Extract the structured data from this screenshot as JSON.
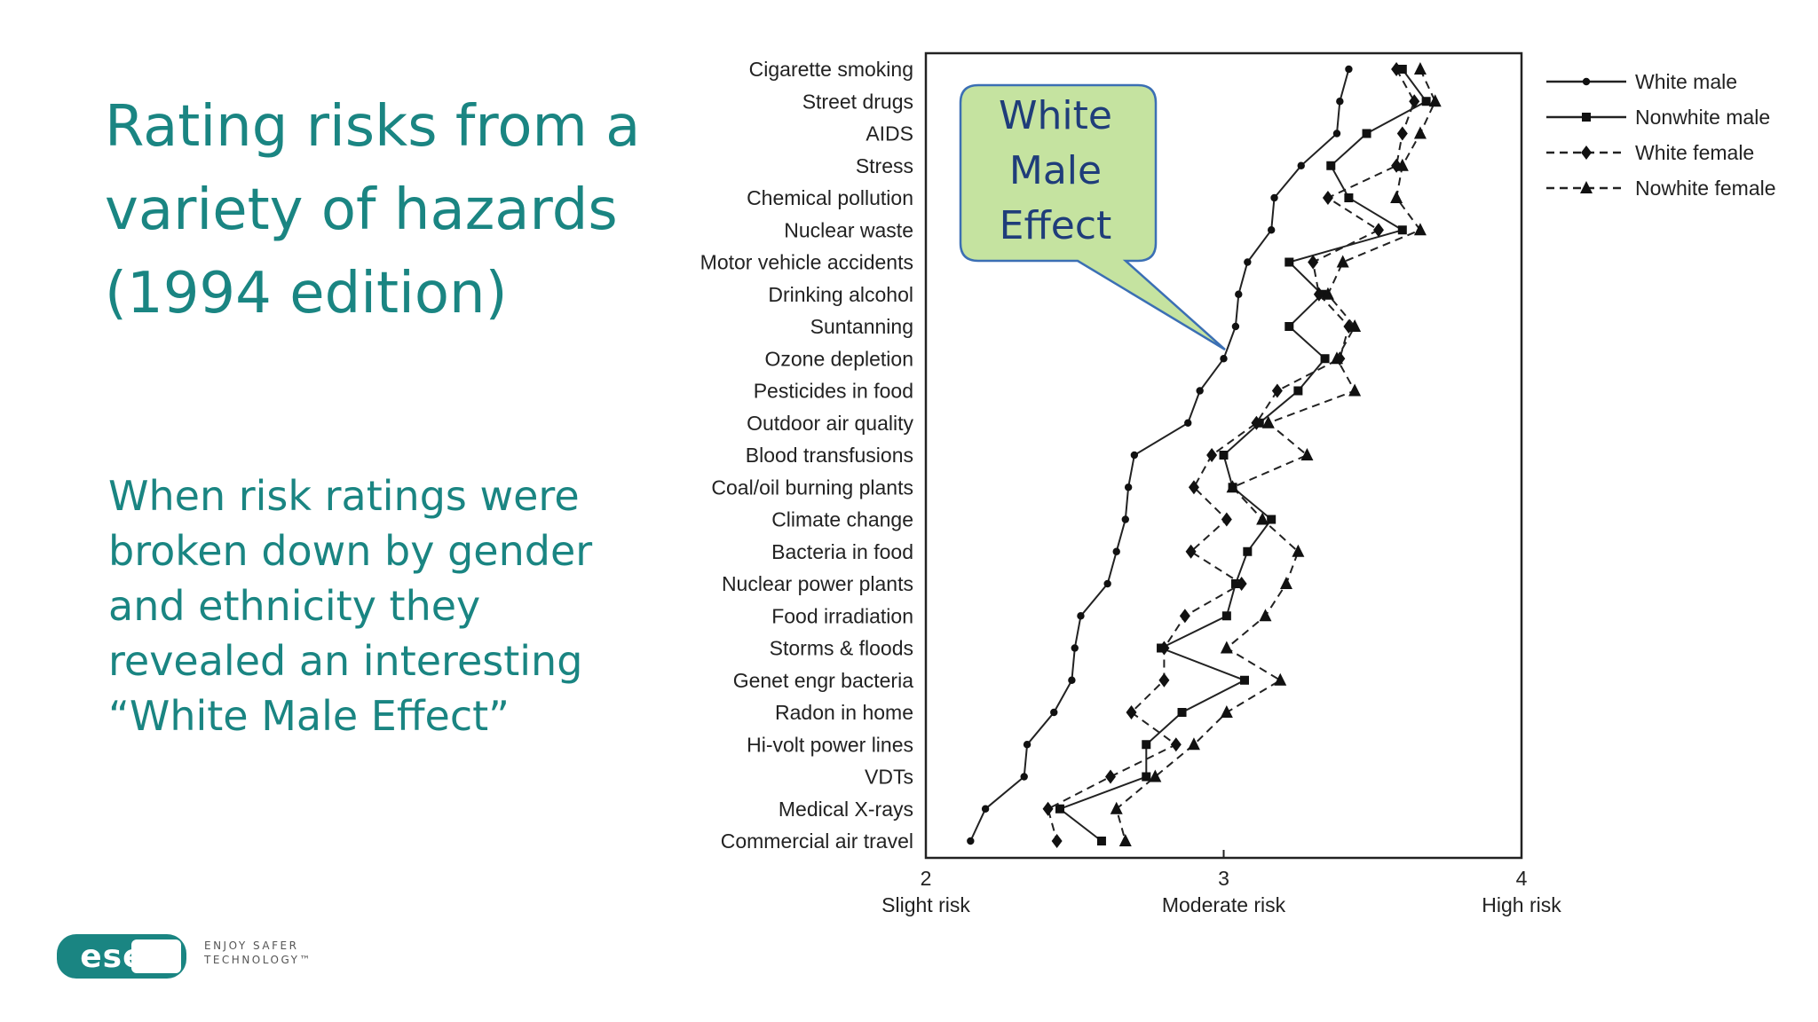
{
  "slide": {
    "title_lines": [
      "Rating risks from a",
      "variety of hazards",
      "(1994 edition)"
    ],
    "body_lines": [
      "When risk ratings were",
      "broken down by gender",
      "and ethnicity they",
      "revealed an interesting",
      "“White Male Effect”"
    ],
    "callout_lines": [
      "White",
      "Male",
      "Effect"
    ]
  },
  "brand": {
    "logo_text": "eset",
    "tagline_lines": [
      "ENJOY SAFER",
      "TECHNOLOGY™"
    ],
    "color": "#1a8582"
  },
  "colors": {
    "title": "#1a8582",
    "callout_fill": "#c5e3a0",
    "callout_border": "#3b6fb4",
    "callout_text": "#1f3d7a"
  },
  "chart_data": {
    "type": "line",
    "categories": [
      "Cigarette smoking",
      "Street drugs",
      "AIDS",
      "Stress",
      "Chemical pollution",
      "Nuclear waste",
      "Motor vehicle accidents",
      "Drinking alcohol",
      "Suntanning",
      "Ozone depletion",
      "Pesticides in food",
      "Outdoor air quality",
      "Blood transfusions",
      "Coal/oil burning plants",
      "Climate change",
      "Bacteria in food",
      "Nuclear power plants",
      "Food irradiation",
      "Storms & floods",
      "Genet engr bacteria",
      "Radon in home",
      "Hi-volt power lines",
      "VDTs",
      "Medical X-rays",
      "Commercial air travel"
    ],
    "xlim": [
      2,
      4
    ],
    "x_ticks": [
      {
        "value": 2,
        "label": "2",
        "sublabel": "Slight risk"
      },
      {
        "value": 3,
        "label": "3",
        "sublabel": "Moderate risk"
      },
      {
        "value": 4,
        "label": "4",
        "sublabel": "High risk"
      }
    ],
    "legend_position": "top-right",
    "series": [
      {
        "name": "White male",
        "marker": "circle",
        "line": "solid",
        "values": [
          3.42,
          3.39,
          3.38,
          3.26,
          3.17,
          3.16,
          3.08,
          3.05,
          3.04,
          3.0,
          2.92,
          2.88,
          2.7,
          2.68,
          2.67,
          2.64,
          2.61,
          2.52,
          2.5,
          2.49,
          2.43,
          2.34,
          2.33,
          2.2,
          2.15
        ]
      },
      {
        "name": "Nonwhite male",
        "marker": "square",
        "line": "solid",
        "values": [
          3.6,
          3.68,
          3.48,
          3.36,
          3.42,
          3.6,
          3.22,
          3.33,
          3.22,
          3.34,
          3.25,
          3.12,
          3.0,
          3.03,
          3.16,
          3.08,
          3.04,
          3.01,
          2.79,
          3.07,
          2.86,
          2.74,
          2.74,
          2.45,
          2.59
        ]
      },
      {
        "name": "White female",
        "marker": "diamond",
        "line": "dashed",
        "values": [
          3.58,
          3.64,
          3.6,
          3.58,
          3.35,
          3.52,
          3.3,
          3.32,
          3.42,
          3.39,
          3.18,
          3.11,
          2.96,
          2.9,
          3.01,
          2.89,
          3.06,
          2.87,
          2.8,
          2.8,
          2.69,
          2.84,
          2.62,
          2.41,
          2.44
        ]
      },
      {
        "name": "Nowhite female",
        "marker": "triangle",
        "line": "dashed",
        "values": [
          3.66,
          3.71,
          3.66,
          3.6,
          3.58,
          3.66,
          3.4,
          3.35,
          3.44,
          3.38,
          3.44,
          3.15,
          3.28,
          3.03,
          3.13,
          3.25,
          3.21,
          3.14,
          3.01,
          3.19,
          3.01,
          2.9,
          2.77,
          2.64,
          2.67
        ]
      }
    ]
  }
}
